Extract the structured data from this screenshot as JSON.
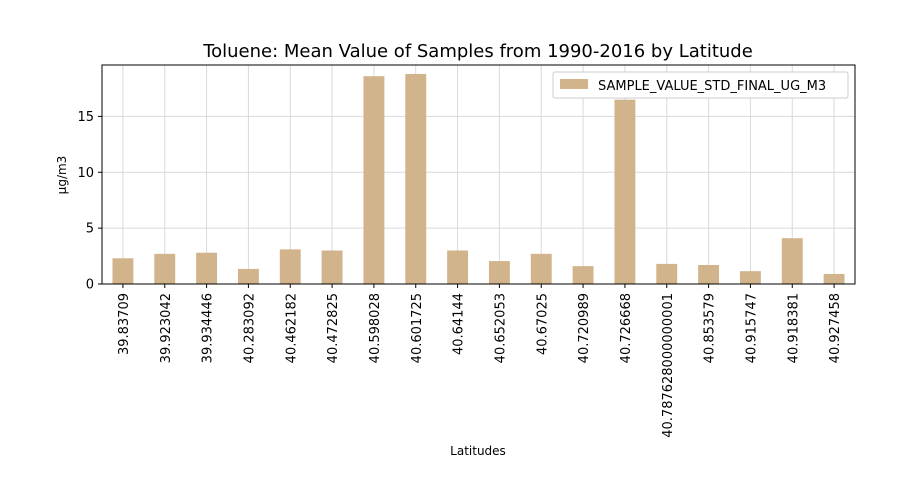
{
  "chart_data": {
    "type": "bar",
    "title": "Toluene: Mean Value of Samples from 1990-2016 by Latitude",
    "xlabel": "Latitudes",
    "ylabel": "µg/m3",
    "ylim": [
      0,
      19.6
    ],
    "yticks": [
      0,
      5,
      10,
      15
    ],
    "grid": true,
    "legend_position": "top-right",
    "categories": [
      "39.83709",
      "39.923042",
      "39.934446",
      "40.283092",
      "40.462182",
      "40.472825",
      "40.598028",
      "40.601725",
      "40.64144",
      "40.652053",
      "40.67025",
      "40.720989",
      "40.726668",
      "40.787628000000001",
      "40.853579",
      "40.915747",
      "40.918381",
      "40.927458"
    ],
    "series": [
      {
        "name": "SAMPLE_VALUE_STD_FINAL_UG_M3",
        "color": "#d2b48c",
        "values": [
          2.3,
          2.7,
          2.8,
          1.35,
          3.1,
          3.0,
          18.6,
          18.8,
          3.0,
          2.05,
          2.7,
          1.6,
          16.5,
          1.8,
          1.7,
          1.15,
          4.1,
          0.9
        ]
      }
    ]
  }
}
